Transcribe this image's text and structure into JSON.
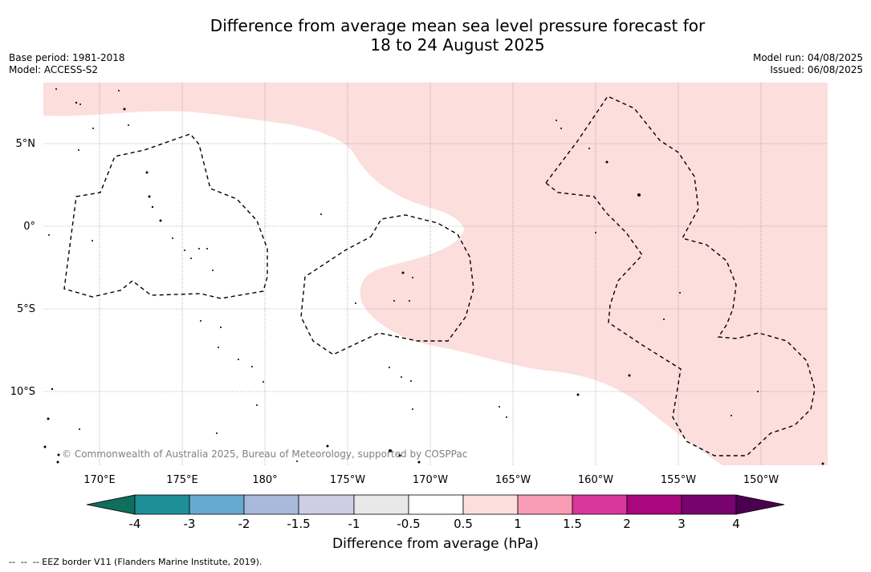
{
  "title": {
    "line1": "Difference from average mean sea level pressure forecast for",
    "line2": "18 to 24 August 2025"
  },
  "meta": {
    "base_period": "Base period: 1981-2018",
    "model": "Model: ACCESS-S2",
    "model_run": "Model run: 04/08/2025",
    "issued": "Issued: 06/08/2025"
  },
  "map": {
    "lat_labels": [
      "5°N",
      "0°",
      "5°S",
      "10°S"
    ],
    "lon_labels": [
      "170°E",
      "175°E",
      "180°",
      "175°W",
      "170°W",
      "165°W",
      "160°W",
      "155°W",
      "150°W"
    ],
    "copyright": "© Commonwealth of Australia 2025, Bureau of Meteorology, supported by COSPPac",
    "anomaly_fill_color": "#fcdedc",
    "ocean_color": "#ffffff"
  },
  "colorbar": {
    "title": "Difference from average (hPa)",
    "tick_labels": [
      "-4",
      "-3",
      "-2",
      "-1.5",
      "-1",
      "-0.5",
      "0.5",
      "1",
      "1.5",
      "2",
      "3",
      "4"
    ],
    "colors": [
      "#1e8f96",
      "#66a9d1",
      "#a8b9dc",
      "#cdcde6",
      "#e8e8e8",
      "#ffffff",
      "#fcdedc",
      "#f89cb5",
      "#d9379a",
      "#a8077d",
      "#77036f"
    ],
    "under_color": "#0f6e5c",
    "over_color": "#4a004f"
  },
  "footnote": "--  --  -- EEZ border V11 (Flanders Marine Institute, 2019)."
}
